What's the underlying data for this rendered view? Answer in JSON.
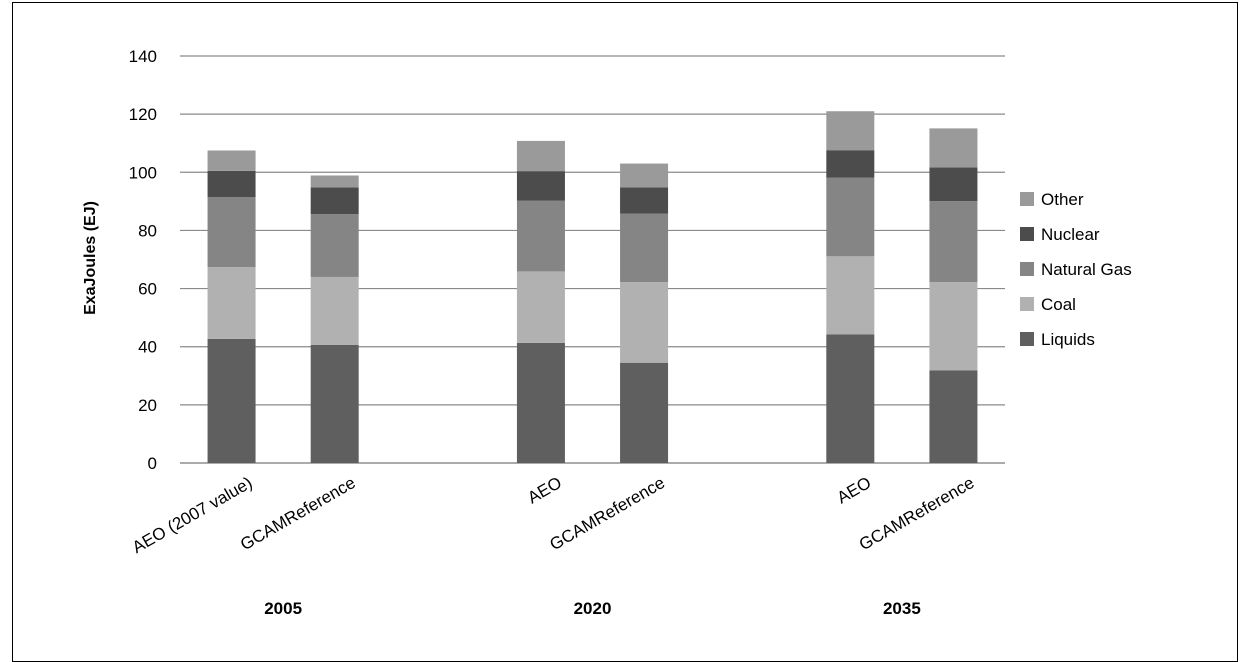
{
  "chart_data": {
    "type": "bar",
    "stacked": true,
    "ylabel": "ExaJoules (EJ)",
    "xlabel": "",
    "ylim": [
      0,
      140
    ],
    "yticks": [
      0,
      20,
      40,
      60,
      80,
      100,
      120,
      140
    ],
    "grid": true,
    "legend_position": "right",
    "groups": [
      {
        "label": "2005",
        "categories": [
          "AEO (2007 value)",
          "GCAMReference"
        ]
      },
      {
        "label": "2020",
        "categories": [
          "AEO",
          "GCAMReference"
        ]
      },
      {
        "label": "2035",
        "categories": [
          "AEO",
          "GCAMReference"
        ]
      }
    ],
    "categories": [
      "AEO (2007 value)",
      "GCAMReference",
      "AEO",
      "GCAMReference",
      "AEO",
      "GCAMReference"
    ],
    "series": [
      {
        "name": "Liquids",
        "color": "#5f5f5f",
        "values": [
          42.7,
          40.6,
          41.3,
          34.5,
          44.2,
          31.9
        ]
      },
      {
        "name": "Coal",
        "color": "#b1b1b1",
        "values": [
          24.7,
          23.4,
          24.6,
          27.7,
          26.9,
          30.3
        ]
      },
      {
        "name": "Natural Gas",
        "color": "#858585",
        "values": [
          24.1,
          21.6,
          24.3,
          23.6,
          27.1,
          27.9
        ]
      },
      {
        "name": "Nuclear",
        "color": "#4c4c4c",
        "values": [
          9.0,
          9.2,
          10.2,
          9.0,
          9.4,
          11.6
        ]
      },
      {
        "name": "Other",
        "color": "#9a9a9a",
        "values": [
          7.0,
          4.1,
          10.4,
          8.2,
          13.4,
          13.4
        ]
      }
    ]
  }
}
